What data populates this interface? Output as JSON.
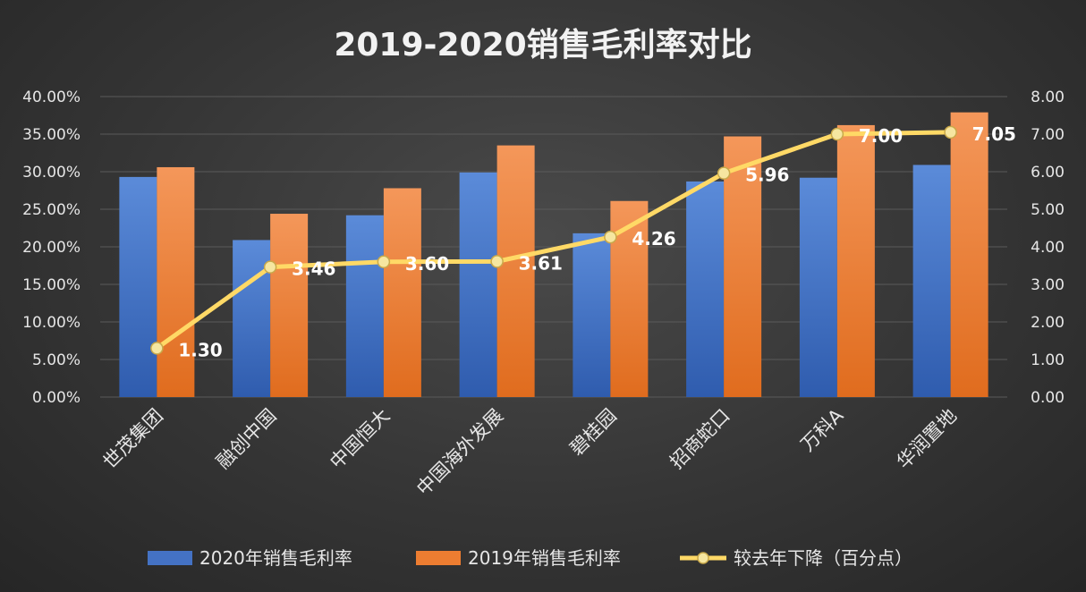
{
  "chart_data": {
    "type": "bar",
    "title": "2019-2020销售毛利率对比",
    "categories": [
      "世茂集团",
      "融创中国",
      "中国恒大",
      "中国海外发展",
      "碧桂园",
      "招商蛇口",
      "万科A",
      "华润置地"
    ],
    "series": [
      {
        "name": "2020年销售毛利率",
        "type": "bar",
        "axis": "left",
        "color": "#4472c4",
        "values": [
          29.3,
          20.9,
          24.2,
          29.9,
          21.8,
          28.7,
          29.2,
          30.9
        ]
      },
      {
        "name": "2019年销售毛利率",
        "type": "bar",
        "axis": "left",
        "color": "#ed7d31",
        "values": [
          30.6,
          24.4,
          27.8,
          33.5,
          26.1,
          34.7,
          36.2,
          37.9
        ]
      },
      {
        "name": "较去年下降（百分点）",
        "type": "line",
        "axis": "right",
        "color": "#ffd966",
        "values": [
          1.3,
          3.46,
          3.6,
          3.61,
          4.26,
          5.96,
          7.0,
          7.05
        ],
        "labels": [
          "1.30",
          "3.46",
          "3.60",
          "3.61",
          "4.26",
          "5.96",
          "7.00",
          "7.05"
        ]
      }
    ],
    "y_left": {
      "range": [
        0,
        40
      ],
      "ticks": [
        "0.00%",
        "5.00%",
        "10.00%",
        "15.00%",
        "20.00%",
        "25.00%",
        "30.00%",
        "35.00%",
        "40.00%"
      ]
    },
    "y_right": {
      "range": [
        0,
        8
      ],
      "ticks": [
        "0.00",
        "1.00",
        "2.00",
        "3.00",
        "4.00",
        "5.00",
        "6.00",
        "7.00",
        "8.00"
      ]
    },
    "grid": true,
    "legend_position": "bottom"
  }
}
